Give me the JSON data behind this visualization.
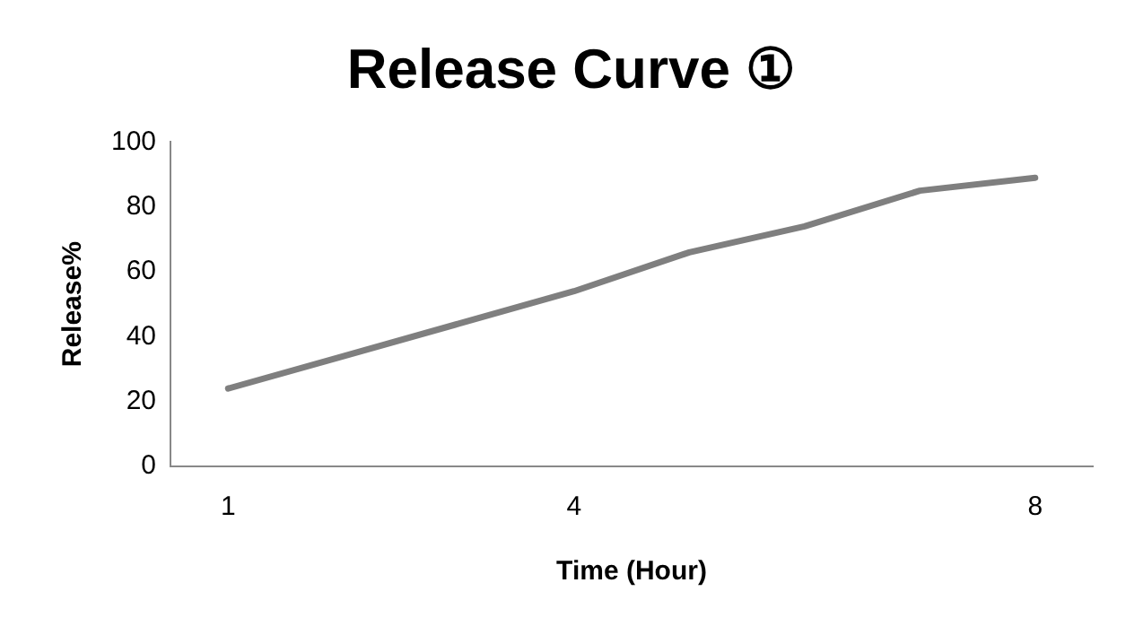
{
  "chart_data": {
    "type": "line",
    "title": "Release Curve ①",
    "xlabel": "Time (Hour)",
    "ylabel": "Release%",
    "categories": [
      "1",
      null,
      null,
      "4",
      null,
      null,
      null,
      "8"
    ],
    "series": [
      {
        "color": "#7f7f7f",
        "values": [
          24,
          34,
          44,
          54,
          66,
          74,
          85,
          89
        ]
      }
    ],
    "ylim": [
      0,
      100
    ],
    "yticks": [
      0,
      20,
      40,
      60,
      80,
      100
    ],
    "grid": false,
    "legend": false,
    "marker": "none",
    "line_style": "solid"
  }
}
